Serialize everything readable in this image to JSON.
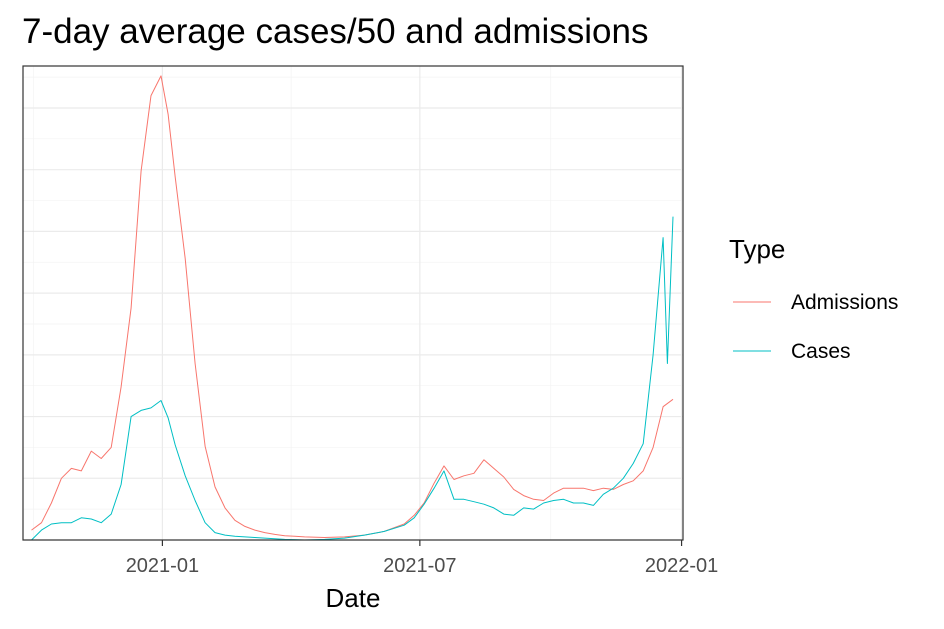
{
  "chart_data": {
    "type": "line",
    "title": "7-day average cases/50 and admissions",
    "xlabel": "Date",
    "ylabel": "",
    "x_range": [
      "2020-09-25",
      "2022-01-02"
    ],
    "y_range": [
      0,
      3840
    ],
    "x_ticks": [
      {
        "value": "2021-01-01",
        "label": "2021-01"
      },
      {
        "value": "2021-07-01",
        "label": "2021-07"
      },
      {
        "value": "2022-01-01",
        "label": "2022-01"
      }
    ],
    "y_tick_labels": "hidden",
    "grid": true,
    "legend": {
      "title": "Type",
      "placement": "right",
      "entries": [
        "Admissions",
        "Cases"
      ]
    },
    "colors": {
      "Admissions": "#F8766D",
      "Cases": "#00BFC4"
    },
    "series": [
      {
        "name": "Admissions",
        "x": [
          "2020-10-01",
          "2020-10-08",
          "2020-10-15",
          "2020-10-22",
          "2020-10-29",
          "2020-11-05",
          "2020-11-12",
          "2020-11-19",
          "2020-11-26",
          "2020-12-03",
          "2020-12-10",
          "2020-12-17",
          "2020-12-24",
          "2020-12-31",
          "2021-01-05",
          "2021-01-10",
          "2021-01-17",
          "2021-01-24",
          "2021-01-31",
          "2021-02-07",
          "2021-02-14",
          "2021-02-21",
          "2021-02-28",
          "2021-03-07",
          "2021-03-14",
          "2021-03-21",
          "2021-03-28",
          "2021-04-04",
          "2021-04-11",
          "2021-04-25",
          "2021-05-09",
          "2021-05-23",
          "2021-06-06",
          "2021-06-20",
          "2021-06-27",
          "2021-07-04",
          "2021-07-11",
          "2021-07-18",
          "2021-07-25",
          "2021-08-01",
          "2021-08-08",
          "2021-08-15",
          "2021-08-22",
          "2021-08-29",
          "2021-09-05",
          "2021-09-12",
          "2021-09-19",
          "2021-09-26",
          "2021-10-03",
          "2021-10-10",
          "2021-10-17",
          "2021-10-24",
          "2021-10-31",
          "2021-11-07",
          "2021-11-14",
          "2021-11-21",
          "2021-11-28",
          "2021-12-05",
          "2021-12-12",
          "2021-12-19",
          "2021-12-26"
        ],
        "values": [
          80,
          140,
          300,
          500,
          580,
          560,
          720,
          660,
          750,
          1240,
          1880,
          2990,
          3600,
          3760,
          3450,
          2940,
          2280,
          1430,
          760,
          430,
          260,
          160,
          110,
          80,
          60,
          45,
          35,
          30,
          25,
          20,
          25,
          40,
          70,
          130,
          200,
          300,
          460,
          600,
          490,
          520,
          540,
          650,
          580,
          510,
          410,
          360,
          330,
          320,
          380,
          420,
          420,
          420,
          400,
          420,
          410,
          450,
          480,
          560,
          750,
          1080,
          1140
        ]
      },
      {
        "name": "Cases",
        "x": [
          "2020-10-01",
          "2020-10-08",
          "2020-10-15",
          "2020-10-22",
          "2020-10-29",
          "2020-11-05",
          "2020-11-12",
          "2020-11-19",
          "2020-11-26",
          "2020-12-03",
          "2020-12-10",
          "2020-12-17",
          "2020-12-24",
          "2020-12-31",
          "2021-01-05",
          "2021-01-10",
          "2021-01-17",
          "2021-01-24",
          "2021-01-31",
          "2021-02-07",
          "2021-02-14",
          "2021-02-21",
          "2021-02-28",
          "2021-03-07",
          "2021-03-14",
          "2021-03-21",
          "2021-03-28",
          "2021-04-04",
          "2021-04-11",
          "2021-04-25",
          "2021-05-09",
          "2021-05-23",
          "2021-06-06",
          "2021-06-20",
          "2021-06-27",
          "2021-07-04",
          "2021-07-11",
          "2021-07-18",
          "2021-07-25",
          "2021-08-01",
          "2021-08-08",
          "2021-08-15",
          "2021-08-22",
          "2021-08-29",
          "2021-09-05",
          "2021-09-12",
          "2021-09-19",
          "2021-09-26",
          "2021-10-03",
          "2021-10-10",
          "2021-10-17",
          "2021-10-24",
          "2021-10-31",
          "2021-11-07",
          "2021-11-14",
          "2021-11-21",
          "2021-11-28",
          "2021-12-05",
          "2021-12-12",
          "2021-12-19",
          "2021-12-22",
          "2021-12-26"
        ],
        "values": [
          0,
          80,
          130,
          140,
          140,
          180,
          170,
          140,
          210,
          450,
          1000,
          1050,
          1070,
          1130,
          990,
          770,
          520,
          320,
          140,
          60,
          40,
          30,
          25,
          20,
          15,
          10,
          5,
          3,
          0,
          5,
          15,
          40,
          70,
          120,
          180,
          290,
          420,
          560,
          330,
          330,
          310,
          290,
          260,
          210,
          200,
          260,
          250,
          300,
          320,
          330,
          300,
          300,
          280,
          370,
          420,
          500,
          620,
          780,
          1500,
          2450,
          1430,
          2620
        ]
      }
    ]
  }
}
